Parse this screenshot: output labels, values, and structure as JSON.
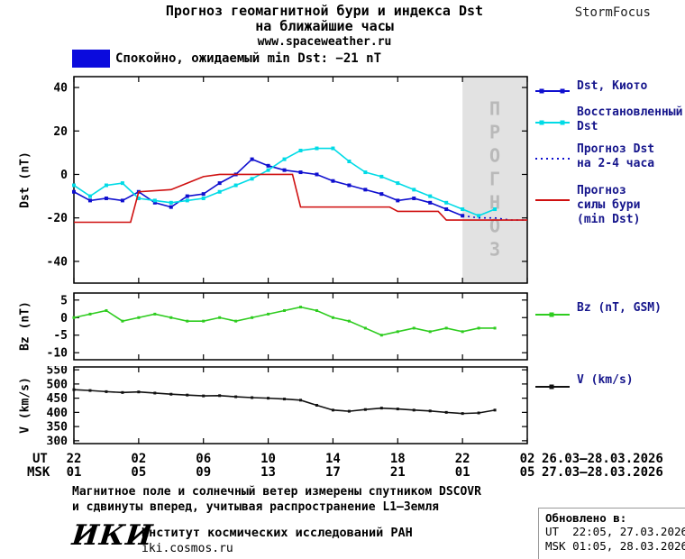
{
  "header": {
    "title_line1": "Прогноз геомагнитной бури и индекса Dst",
    "title_line2": "на ближайшие часы",
    "site": "www.spaceweather.ru",
    "brand": "StormFocus"
  },
  "status": {
    "label": "Спокойно, ожидаемый min Dst: −21 nT",
    "swatch_color": "#0b0bdd"
  },
  "forecast_band_label": "ПРОГНОЗ",
  "axes": {
    "dst_label": "Dst (nT)",
    "bz_label": "Bz (nT)",
    "v_label": "V (km/s)",
    "ut_label": "UT",
    "msk_label": "MSK",
    "ut_ticks": [
      "22",
      "02",
      "06",
      "10",
      "14",
      "18",
      "22",
      "02"
    ],
    "msk_ticks": [
      "01",
      "05",
      "09",
      "13",
      "17",
      "21",
      "01",
      "05"
    ],
    "ut_dates": "26.03—28.03.2026",
    "msk_dates": "27.03—28.03.2026"
  },
  "legend": {
    "dst_kyoto": "Dst, Киото",
    "restored1": "Восстановленный",
    "restored2": "Dst",
    "forecast_dst1": "Прогноз Dst",
    "forecast_dst2": "на 2-4 часа",
    "forecast_storm1": "Прогноз",
    "forecast_storm2": "силы бури",
    "forecast_storm3": "(min Dst)",
    "bz": "Bz (nT, GSM)",
    "v": "V (km/s)",
    "text_color": "#16168c"
  },
  "footer": {
    "note1": "Магнитное поле и солнечный ветер измерены спутником DSCOVR",
    "note2": "и сдвинуты вперед, учитывая распространение L1—Земля",
    "logo": "ИКИ",
    "institute": "Институт космических исследований РАН",
    "site": "iki.cosmos.ru",
    "updated_label": "Обновлено в:",
    "updated_ut": "UT  22:05, 27.03.2026",
    "updated_msk": "MSK 01:05, 28.03.2026"
  },
  "chart_data": [
    {
      "type": "line",
      "name": "dst-panel",
      "ylabel": "Dst (nT)",
      "xlim": [
        0,
        28
      ],
      "xticks": [
        0,
        4,
        8,
        12,
        16,
        20,
        24,
        28
      ],
      "ylim": [
        -50,
        45
      ],
      "yticks": [
        40,
        20,
        0,
        -20,
        -40
      ],
      "forecast_band_x": [
        24,
        28
      ],
      "band_label": "ПРОГНОЗ",
      "band_color": "#e2e2e2",
      "series": [
        {
          "name": "Dst, Киото",
          "color": "#0f0fcf",
          "marker": true,
          "msize": 4,
          "x": [
            0,
            1,
            2,
            3,
            4,
            5,
            6,
            7,
            8,
            9,
            10,
            11,
            12,
            13,
            14,
            15,
            16,
            17,
            18,
            19,
            20,
            21,
            22,
            23,
            24
          ],
          "y": [
            -8,
            -12,
            -11,
            -12,
            -8,
            -13,
            -15,
            -10,
            -9,
            -4,
            0,
            7,
            4,
            2,
            1,
            0,
            -3,
            -5,
            -7,
            -9,
            -12,
            -11,
            -13,
            -16,
            -19
          ]
        },
        {
          "name": "Восстановленный Dst",
          "color": "#00dbe6",
          "marker": true,
          "msize": 4,
          "x": [
            0,
            1,
            2,
            3,
            4,
            5,
            6,
            7,
            8,
            9,
            10,
            11,
            12,
            13,
            14,
            15,
            16,
            17,
            18,
            19,
            20,
            21,
            22,
            23,
            24,
            25,
            26
          ],
          "y": [
            -5,
            -10,
            -5,
            -4,
            -11,
            -12,
            -13,
            -12,
            -11,
            -8,
            -5,
            -2,
            2,
            7,
            11,
            12,
            12,
            6,
            1,
            -1,
            -4,
            -7,
            -10,
            -13,
            -16,
            -19,
            -16
          ]
        },
        {
          "name": "Прогноз Dst на 2-4 часа",
          "color": "#0f0fcf",
          "dash": "2,4",
          "x": [
            24,
            25,
            26,
            27,
            28
          ],
          "y": [
            -19,
            -20,
            -20,
            -21,
            -21
          ]
        },
        {
          "name": "Прогноз силы бури (min Dst)",
          "color": "#cf0f0f",
          "x": [
            0,
            3.5,
            4,
            6,
            7,
            8,
            9,
            13.5,
            14,
            19.5,
            20,
            22.5,
            23,
            28
          ],
          "y": [
            -22,
            -22,
            -8,
            -7,
            -4,
            -1,
            0,
            0,
            -15,
            -15,
            -17,
            -17,
            -21,
            -21
          ]
        }
      ]
    },
    {
      "type": "line",
      "name": "bz-panel",
      "ylabel": "Bz (nT)",
      "xlim": [
        0,
        28
      ],
      "xticks": [
        0,
        4,
        8,
        12,
        16,
        20,
        24,
        28
      ],
      "ylim": [
        -12,
        7
      ],
      "yticks": [
        5,
        0,
        -5,
        -10
      ],
      "series": [
        {
          "name": "Bz (nT, GSM)",
          "color": "#2ecc1f",
          "marker": true,
          "msize": 3,
          "x": [
            0,
            1,
            2,
            3,
            4,
            5,
            6,
            7,
            8,
            9,
            10,
            11,
            12,
            13,
            14,
            15,
            16,
            17,
            18,
            19,
            20,
            21,
            22,
            23,
            24,
            25,
            26
          ],
          "y": [
            0,
            1,
            2,
            -1,
            0,
            1,
            0,
            -1,
            -1,
            0,
            -1,
            0,
            1,
            2,
            3,
            2,
            0,
            -1,
            -3,
            -5,
            -4,
            -3,
            -4,
            -3,
            -4,
            -3,
            -3
          ]
        }
      ]
    },
    {
      "type": "line",
      "name": "v-panel",
      "ylabel": "V (km/s)",
      "xlim": [
        0,
        28
      ],
      "xticks": [
        0,
        4,
        8,
        12,
        16,
        20,
        24,
        28
      ],
      "ylim": [
        290,
        560
      ],
      "yticks": [
        550,
        500,
        450,
        400,
        350,
        300
      ],
      "series": [
        {
          "name": "V (km/s)",
          "color": "#111111",
          "marker": true,
          "msize": 3,
          "x": [
            0,
            1,
            2,
            3,
            4,
            5,
            6,
            7,
            8,
            9,
            10,
            11,
            12,
            13,
            14,
            15,
            16,
            17,
            18,
            19,
            20,
            21,
            22,
            23,
            24,
            25,
            26
          ],
          "y": [
            480,
            477,
            473,
            470,
            472,
            468,
            464,
            461,
            458,
            459,
            455,
            452,
            450,
            447,
            443,
            425,
            408,
            404,
            410,
            415,
            412,
            408,
            405,
            400,
            396,
            398,
            408
          ]
        }
      ]
    }
  ]
}
